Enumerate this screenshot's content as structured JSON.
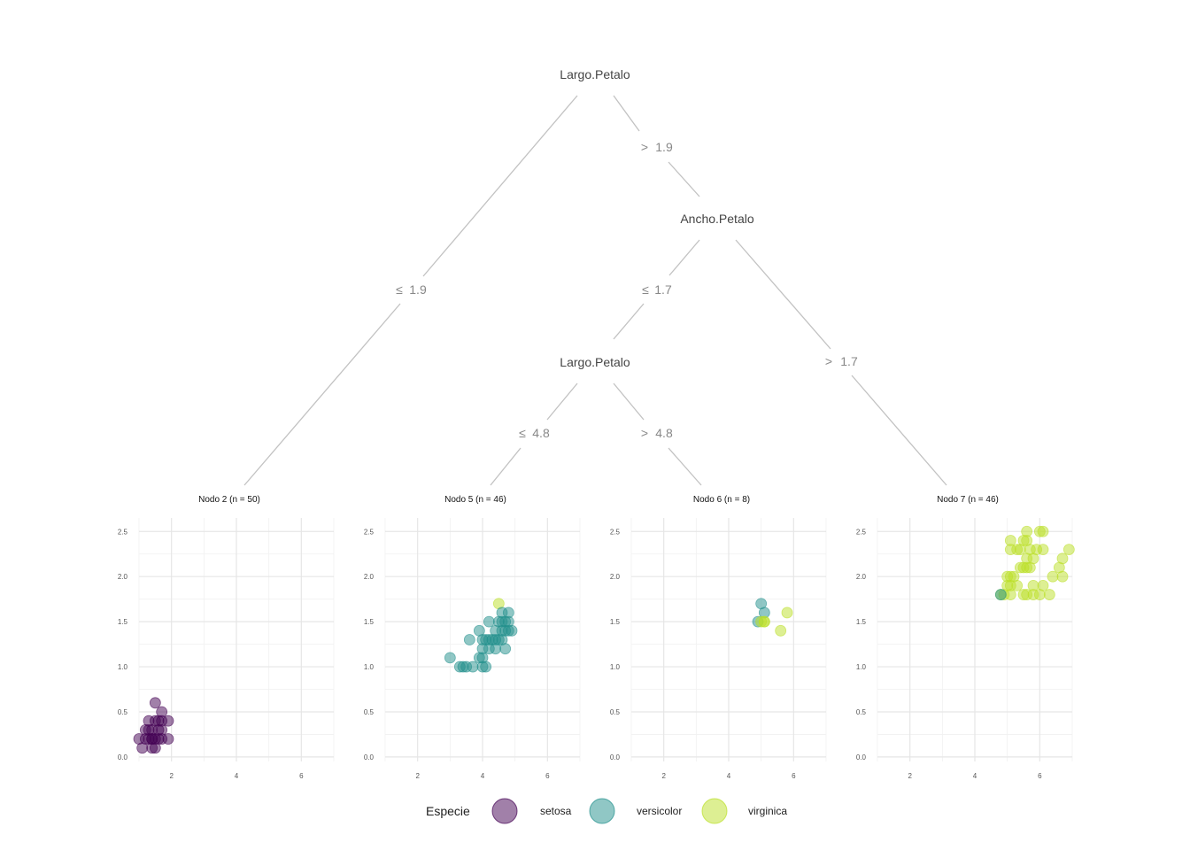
{
  "colors": {
    "setosa": "#440154",
    "versicolor": "#21908C",
    "virginica": "#BBDF27"
  },
  "tree": {
    "nodes": [
      {
        "id": "n1",
        "label": "Largo.Petalo"
      },
      {
        "id": "n3",
        "label": "Ancho.Petalo"
      },
      {
        "id": "n4",
        "label": "Largo.Petalo"
      }
    ],
    "edges": [
      {
        "id": "e1",
        "op": "≤",
        "value": "1.9"
      },
      {
        "id": "e2",
        "op": ">",
        "value": "1.9"
      },
      {
        "id": "e3",
        "op": "≤",
        "value": "1.7"
      },
      {
        "id": "e4",
        "op": ">",
        "value": "1.7"
      },
      {
        "id": "e5",
        "op": "≤",
        "value": "4.8"
      },
      {
        "id": "e6",
        "op": ">",
        "value": "4.8"
      }
    ]
  },
  "chart_data": {
    "type": "scatter",
    "x_ticks": [
      2,
      4,
      6
    ],
    "y_ticks": [
      "0.0",
      "0.5",
      "1.0",
      "1.5",
      "2.0",
      "2.5"
    ],
    "xlim": [
      1.0,
      7.0
    ],
    "ylim": [
      -0.05,
      2.65
    ],
    "grid": true,
    "panels": [
      {
        "title": "Nodo 2 (n = 50)",
        "points": [
          {
            "x": 1.5,
            "y": 0.6,
            "s": "setosa"
          },
          {
            "x": 1.7,
            "y": 0.5,
            "s": "setosa"
          },
          {
            "x": 1.3,
            "y": 0.4,
            "s": "setosa"
          },
          {
            "x": 1.5,
            "y": 0.4,
            "s": "setosa"
          },
          {
            "x": 1.6,
            "y": 0.4,
            "s": "setosa"
          },
          {
            "x": 1.9,
            "y": 0.4,
            "s": "setosa"
          },
          {
            "x": 1.7,
            "y": 0.4,
            "s": "setosa"
          },
          {
            "x": 1.2,
            "y": 0.3,
            "s": "setosa"
          },
          {
            "x": 1.4,
            "y": 0.3,
            "s": "setosa"
          },
          {
            "x": 1.7,
            "y": 0.3,
            "s": "setosa"
          },
          {
            "x": 1.3,
            "y": 0.3,
            "s": "setosa"
          },
          {
            "x": 1.6,
            "y": 0.3,
            "s": "setosa"
          },
          {
            "x": 1.0,
            "y": 0.2,
            "s": "setosa"
          },
          {
            "x": 1.2,
            "y": 0.2,
            "s": "setosa"
          },
          {
            "x": 1.3,
            "y": 0.2,
            "s": "setosa"
          },
          {
            "x": 1.4,
            "y": 0.2,
            "s": "setosa"
          },
          {
            "x": 1.5,
            "y": 0.2,
            "s": "setosa"
          },
          {
            "x": 1.6,
            "y": 0.2,
            "s": "setosa"
          },
          {
            "x": 1.7,
            "y": 0.2,
            "s": "setosa"
          },
          {
            "x": 1.9,
            "y": 0.2,
            "s": "setosa"
          },
          {
            "x": 1.1,
            "y": 0.1,
            "s": "setosa"
          },
          {
            "x": 1.4,
            "y": 0.1,
            "s": "setosa"
          },
          {
            "x": 1.5,
            "y": 0.1,
            "s": "setosa"
          },
          {
            "x": 1.4,
            "y": 0.2,
            "s": "setosa"
          }
        ]
      },
      {
        "title": "Nodo 5 (n = 46)",
        "points": [
          {
            "x": 4.5,
            "y": 1.7,
            "s": "virginica"
          },
          {
            "x": 4.6,
            "y": 1.6,
            "s": "versicolor"
          },
          {
            "x": 4.8,
            "y": 1.6,
            "s": "versicolor"
          },
          {
            "x": 4.2,
            "y": 1.5,
            "s": "versicolor"
          },
          {
            "x": 4.5,
            "y": 1.5,
            "s": "versicolor"
          },
          {
            "x": 4.6,
            "y": 1.5,
            "s": "versicolor"
          },
          {
            "x": 4.7,
            "y": 1.5,
            "s": "versicolor"
          },
          {
            "x": 4.8,
            "y": 1.5,
            "s": "versicolor"
          },
          {
            "x": 3.9,
            "y": 1.4,
            "s": "versicolor"
          },
          {
            "x": 4.4,
            "y": 1.4,
            "s": "versicolor"
          },
          {
            "x": 4.6,
            "y": 1.4,
            "s": "versicolor"
          },
          {
            "x": 4.7,
            "y": 1.4,
            "s": "versicolor"
          },
          {
            "x": 4.8,
            "y": 1.4,
            "s": "versicolor"
          },
          {
            "x": 4.9,
            "y": 1.4,
            "s": "versicolor"
          },
          {
            "x": 3.6,
            "y": 1.3,
            "s": "versicolor"
          },
          {
            "x": 4.0,
            "y": 1.3,
            "s": "versicolor"
          },
          {
            "x": 4.1,
            "y": 1.3,
            "s": "versicolor"
          },
          {
            "x": 4.2,
            "y": 1.3,
            "s": "versicolor"
          },
          {
            "x": 4.3,
            "y": 1.3,
            "s": "versicolor"
          },
          {
            "x": 4.4,
            "y": 1.3,
            "s": "versicolor"
          },
          {
            "x": 4.5,
            "y": 1.3,
            "s": "versicolor"
          },
          {
            "x": 4.6,
            "y": 1.3,
            "s": "versicolor"
          },
          {
            "x": 4.0,
            "y": 1.2,
            "s": "versicolor"
          },
          {
            "x": 4.2,
            "y": 1.2,
            "s": "versicolor"
          },
          {
            "x": 4.4,
            "y": 1.2,
            "s": "versicolor"
          },
          {
            "x": 4.7,
            "y": 1.2,
            "s": "versicolor"
          },
          {
            "x": 3.9,
            "y": 1.1,
            "s": "versicolor"
          },
          {
            "x": 4.0,
            "y": 1.1,
            "s": "versicolor"
          },
          {
            "x": 3.0,
            "y": 1.1,
            "s": "versicolor"
          },
          {
            "x": 3.3,
            "y": 1.0,
            "s": "versicolor"
          },
          {
            "x": 3.5,
            "y": 1.0,
            "s": "versicolor"
          },
          {
            "x": 3.7,
            "y": 1.0,
            "s": "versicolor"
          },
          {
            "x": 4.0,
            "y": 1.0,
            "s": "versicolor"
          },
          {
            "x": 4.1,
            "y": 1.0,
            "s": "versicolor"
          },
          {
            "x": 3.4,
            "y": 1.0,
            "s": "versicolor"
          }
        ]
      },
      {
        "title": "Nodo 6 (n = 8)",
        "points": [
          {
            "x": 5.0,
            "y": 1.7,
            "s": "versicolor"
          },
          {
            "x": 5.1,
            "y": 1.6,
            "s": "versicolor"
          },
          {
            "x": 4.9,
            "y": 1.5,
            "s": "versicolor"
          },
          {
            "x": 5.0,
            "y": 1.5,
            "s": "virginica"
          },
          {
            "x": 5.1,
            "y": 1.5,
            "s": "virginica"
          },
          {
            "x": 5.8,
            "y": 1.6,
            "s": "virginica"
          },
          {
            "x": 5.6,
            "y": 1.4,
            "s": "virginica"
          },
          {
            "x": 5.1,
            "y": 1.5,
            "s": "virginica"
          }
        ]
      },
      {
        "title": "Nodo 7 (n = 46)",
        "points": [
          {
            "x": 5.6,
            "y": 2.5,
            "s": "virginica"
          },
          {
            "x": 6.0,
            "y": 2.5,
            "s": "virginica"
          },
          {
            "x": 6.1,
            "y": 2.5,
            "s": "virginica"
          },
          {
            "x": 5.1,
            "y": 2.4,
            "s": "virginica"
          },
          {
            "x": 5.6,
            "y": 2.4,
            "s": "virginica"
          },
          {
            "x": 5.5,
            "y": 2.4,
            "s": "virginica"
          },
          {
            "x": 5.1,
            "y": 2.3,
            "s": "virginica"
          },
          {
            "x": 5.3,
            "y": 2.3,
            "s": "virginica"
          },
          {
            "x": 5.4,
            "y": 2.3,
            "s": "virginica"
          },
          {
            "x": 5.7,
            "y": 2.3,
            "s": "virginica"
          },
          {
            "x": 5.9,
            "y": 2.3,
            "s": "virginica"
          },
          {
            "x": 6.1,
            "y": 2.3,
            "s": "virginica"
          },
          {
            "x": 6.9,
            "y": 2.3,
            "s": "virginica"
          },
          {
            "x": 6.7,
            "y": 2.2,
            "s": "virginica"
          },
          {
            "x": 5.6,
            "y": 2.2,
            "s": "virginica"
          },
          {
            "x": 5.8,
            "y": 2.2,
            "s": "virginica"
          },
          {
            "x": 5.4,
            "y": 2.1,
            "s": "virginica"
          },
          {
            "x": 5.5,
            "y": 2.1,
            "s": "virginica"
          },
          {
            "x": 5.6,
            "y": 2.1,
            "s": "virginica"
          },
          {
            "x": 5.7,
            "y": 2.1,
            "s": "virginica"
          },
          {
            "x": 6.6,
            "y": 2.1,
            "s": "virginica"
          },
          {
            "x": 5.0,
            "y": 2.0,
            "s": "virginica"
          },
          {
            "x": 5.1,
            "y": 2.0,
            "s": "virginica"
          },
          {
            "x": 5.2,
            "y": 2.0,
            "s": "virginica"
          },
          {
            "x": 6.4,
            "y": 2.0,
            "s": "virginica"
          },
          {
            "x": 6.7,
            "y": 2.0,
            "s": "virginica"
          },
          {
            "x": 5.0,
            "y": 1.9,
            "s": "virginica"
          },
          {
            "x": 5.1,
            "y": 1.9,
            "s": "virginica"
          },
          {
            "x": 5.3,
            "y": 1.9,
            "s": "virginica"
          },
          {
            "x": 5.8,
            "y": 1.9,
            "s": "virginica"
          },
          {
            "x": 6.1,
            "y": 1.9,
            "s": "virginica"
          },
          {
            "x": 4.8,
            "y": 1.8,
            "s": "virginica"
          },
          {
            "x": 4.9,
            "y": 1.8,
            "s": "virginica"
          },
          {
            "x": 5.1,
            "y": 1.8,
            "s": "virginica"
          },
          {
            "x": 5.5,
            "y": 1.8,
            "s": "virginica"
          },
          {
            "x": 5.6,
            "y": 1.8,
            "s": "virginica"
          },
          {
            "x": 5.8,
            "y": 1.8,
            "s": "virginica"
          },
          {
            "x": 6.0,
            "y": 1.8,
            "s": "virginica"
          },
          {
            "x": 6.3,
            "y": 1.8,
            "s": "virginica"
          },
          {
            "x": 4.8,
            "y": 1.8,
            "s": "versicolor"
          }
        ]
      }
    ]
  },
  "legend": {
    "title": "Especie",
    "items": [
      {
        "key": "setosa",
        "label": "setosa"
      },
      {
        "key": "versicolor",
        "label": "versicolor"
      },
      {
        "key": "virginica",
        "label": "virginica"
      }
    ]
  }
}
